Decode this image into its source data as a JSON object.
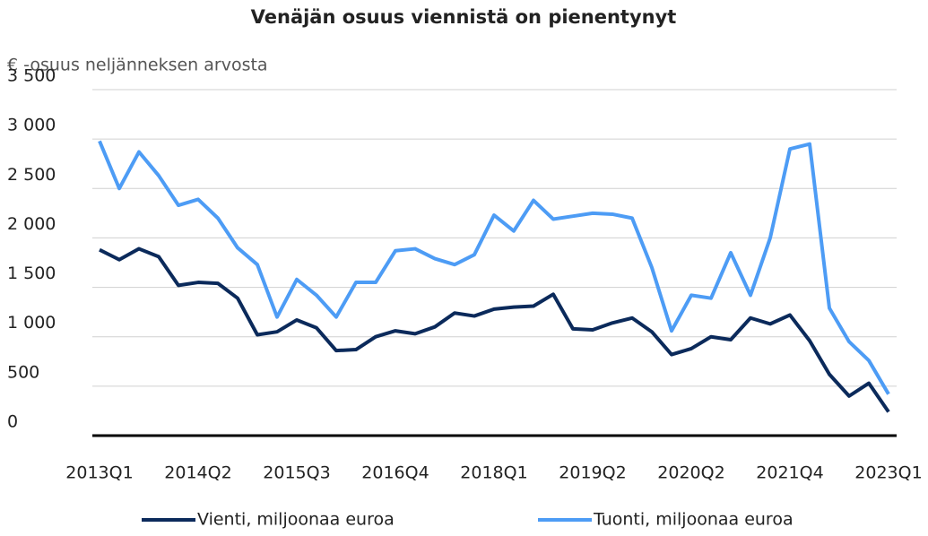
{
  "chart_data": {
    "type": "line",
    "title": "Venäjän osuus viennistä on pienentynyt",
    "y_label": "€ -osuus neljänneksen arvosta",
    "categories": [
      "2013Q1",
      null,
      null,
      null,
      null,
      "2014Q2",
      null,
      null,
      null,
      null,
      "2015Q3",
      null,
      null,
      null,
      null,
      "2016Q4",
      null,
      null,
      null,
      null,
      "2018Q1",
      null,
      null,
      null,
      null,
      "2019Q2",
      null,
      null,
      null,
      null,
      "2020Q2",
      null,
      null,
      null,
      null,
      "2021Q4",
      null,
      null,
      null,
      null,
      "2023Q1"
    ],
    "series": [
      {
        "name": "Vienti, miljoonaa euroa",
        "color": "#0b2a5b",
        "values": [
          1880,
          1780,
          1890,
          1810,
          1520,
          1550,
          1540,
          1390,
          1020,
          1050,
          1170,
          1090,
          860,
          870,
          1000,
          1060,
          1030,
          1100,
          1240,
          1210,
          1280,
          1300,
          1310,
          1430,
          1080,
          1070,
          1140,
          1190,
          1050,
          820,
          880,
          1000,
          970,
          1190,
          1130,
          1220,
          960,
          620,
          400,
          530,
          240
        ]
      },
      {
        "name": "Tuonti, miljoonaa euroa",
        "color": "#4d9cf5",
        "values": [
          2980,
          2500,
          2870,
          2630,
          2330,
          2390,
          2200,
          1900,
          1730,
          1200,
          1580,
          1420,
          1200,
          1550,
          1550,
          1870,
          1890,
          1790,
          1730,
          1830,
          2230,
          2070,
          2380,
          2190,
          2220,
          2250,
          2240,
          2200,
          1700,
          1060,
          1420,
          1390,
          1850,
          1420,
          2000,
          2900,
          2950,
          1290,
          950,
          760,
          420
        ]
      }
    ],
    "ylim": [
      0,
      3500
    ],
    "yticks": [
      0,
      500,
      {
        "value": 1000,
        "label": "1 000"
      },
      {
        "value": 1500,
        "label": "1 500"
      },
      {
        "value": 2000,
        "label": "2 000"
      },
      {
        "value": 2500,
        "label": "2 500"
      },
      {
        "value": 3000,
        "label": "3 000"
      },
      {
        "value": 3500,
        "label": "3 500"
      }
    ],
    "grid": true,
    "legend": "bottom"
  }
}
